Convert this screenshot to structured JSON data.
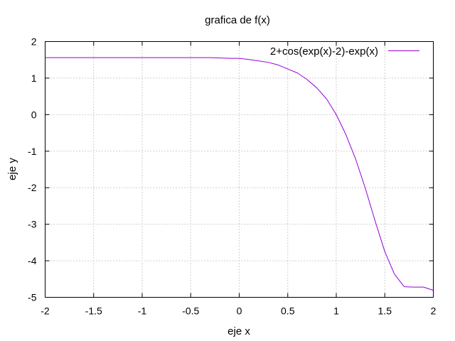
{
  "chart_data": {
    "type": "line",
    "title": "grafica de f(x)",
    "xlabel": "eje x",
    "ylabel": "eje y",
    "xlim": [
      -2,
      2
    ],
    "ylim": [
      -5,
      2
    ],
    "xticks": [
      -2,
      -1.5,
      -1,
      -0.5,
      0,
      0.5,
      1,
      1.5,
      2
    ],
    "yticks": [
      -5,
      -4,
      -3,
      -2,
      -1,
      0,
      1,
      2
    ],
    "xtick_labels": [
      "-2",
      "-1.5",
      "-1",
      "-0.5",
      "0",
      "0.5",
      "1",
      "1.5",
      "2"
    ],
    "ytick_labels": [
      "-5",
      "-4",
      "-3",
      "-2",
      "-1",
      "0",
      "1",
      "2"
    ],
    "grid": true,
    "legend_position": "top-right",
    "series": [
      {
        "name": "2+cos(exp(x)-2)-exp(x)",
        "color": "#9400d3",
        "x": [
          -2.0,
          -1.8,
          -1.6,
          -1.4,
          -1.2,
          -1.0,
          -0.8,
          -0.6,
          -0.4,
          -0.3,
          -0.2,
          -0.1,
          0.0,
          0.1,
          0.2,
          0.3,
          0.4,
          0.5,
          0.6,
          0.7,
          0.8,
          0.9,
          1.0,
          1.1,
          1.2,
          1.3,
          1.4,
          1.5,
          1.6,
          1.7,
          1.8,
          1.9,
          2.0
        ],
        "y": [
          1.56,
          1.56,
          1.56,
          1.56,
          1.56,
          1.56,
          1.56,
          1.56,
          1.56,
          1.56,
          1.55,
          1.54,
          1.54,
          1.51,
          1.47,
          1.43,
          1.36,
          1.25,
          1.14,
          0.96,
          0.73,
          0.43,
          0.0,
          -0.55,
          -1.22,
          -2.02,
          -2.91,
          -3.75,
          -4.37,
          -4.71,
          -4.72,
          -4.72,
          -4.81
        ]
      }
    ]
  }
}
